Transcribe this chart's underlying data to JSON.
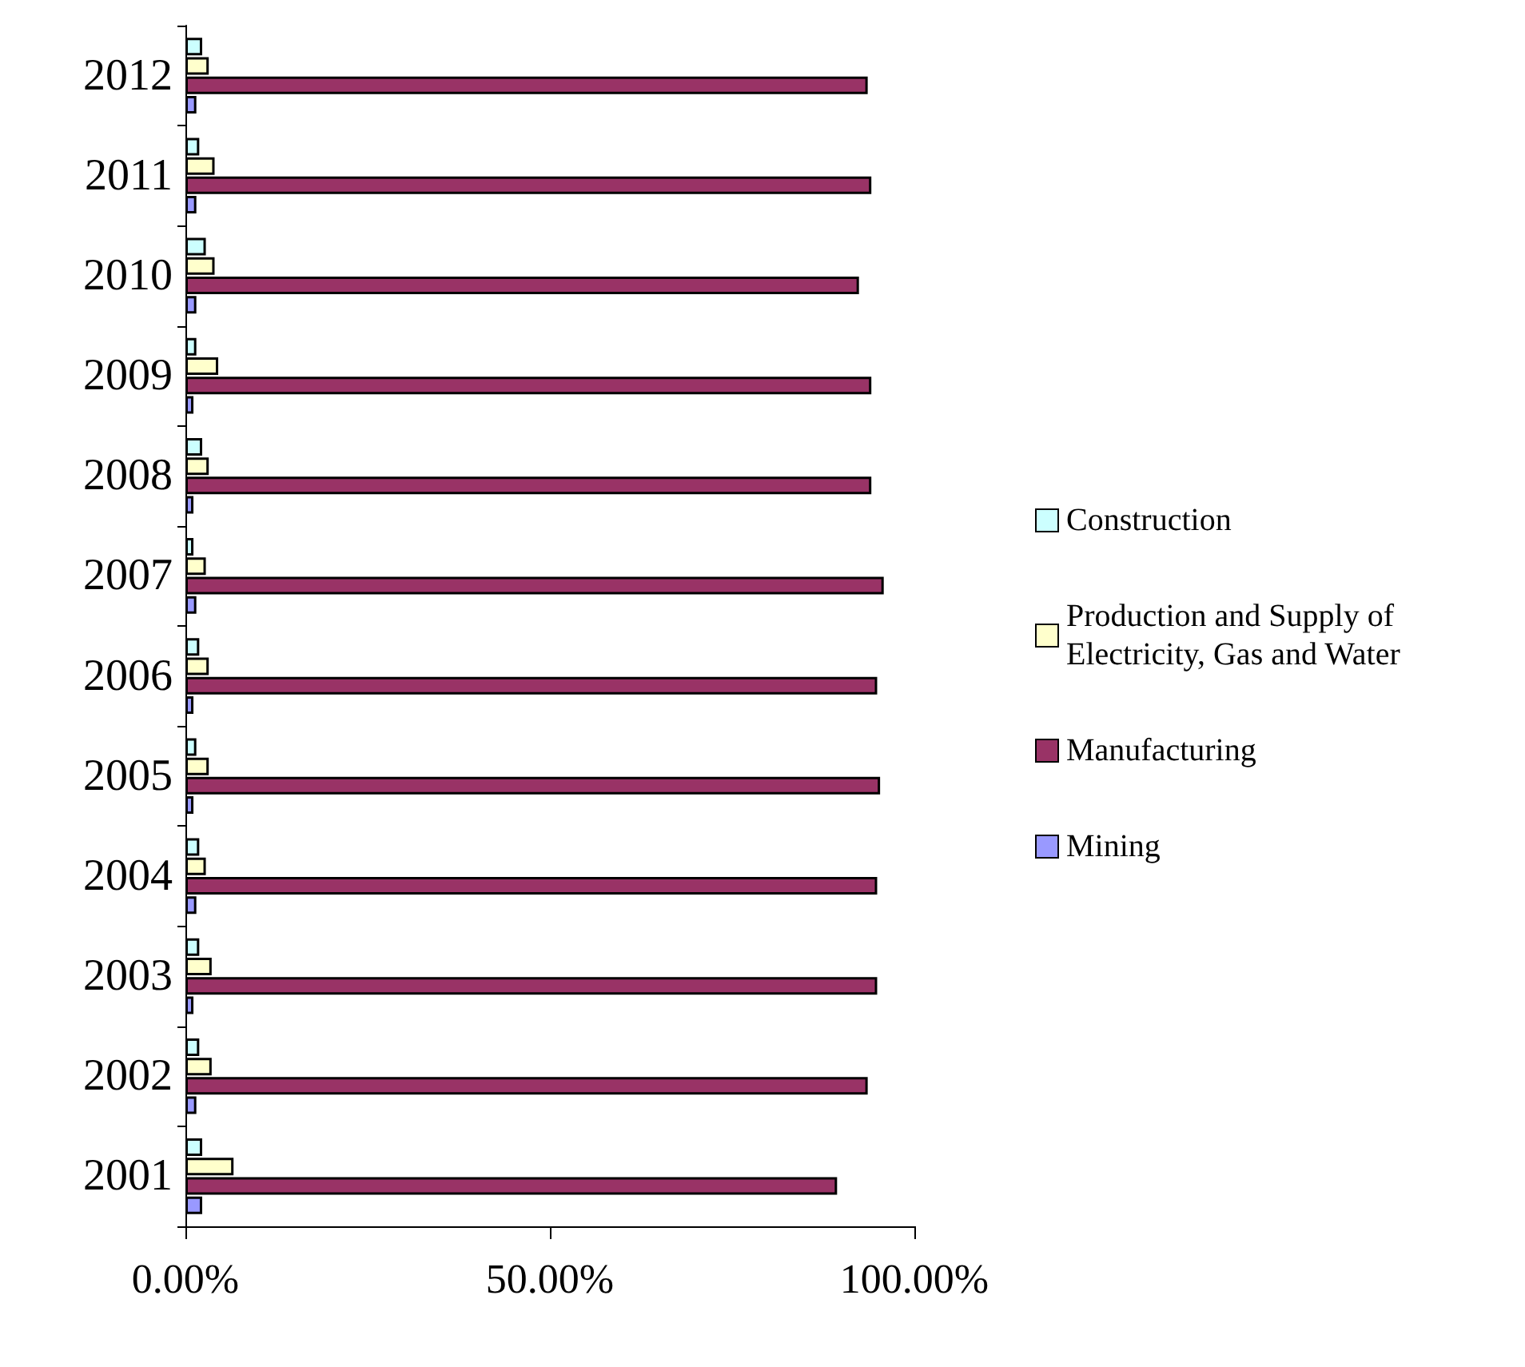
{
  "chart_data": {
    "type": "bar",
    "orientation": "horizontal",
    "categories": [
      "2012",
      "2011",
      "2010",
      "2009",
      "2008",
      "2007",
      "2006",
      "2005",
      "2004",
      "2003",
      "2002",
      "2001"
    ],
    "series": [
      {
        "name": "Construction",
        "color": "#ccffff",
        "values": [
          2.3,
          1.9,
          2.8,
          1.5,
          2.3,
          1.1,
          1.9,
          1.5,
          1.9,
          1.9,
          1.9,
          2.3
        ]
      },
      {
        "name": "Production and Supply of Electricity, Gas and Water",
        "color": "#ffffcc",
        "values": [
          3.2,
          4.0,
          4.0,
          4.5,
          3.2,
          2.8,
          3.2,
          3.2,
          2.8,
          3.6,
          3.6,
          6.6
        ]
      },
      {
        "name": "Manufacturing",
        "color": "#993366",
        "values": [
          93.6,
          94.1,
          92.4,
          94.1,
          94.1,
          95.8,
          94.9,
          95.3,
          94.9,
          94.9,
          93.6,
          89.4
        ]
      },
      {
        "name": "Mining",
        "color": "#9999ff",
        "values": [
          1.5,
          1.5,
          1.5,
          1.1,
          1.1,
          1.5,
          1.1,
          1.1,
          1.5,
          1.1,
          1.5,
          2.3
        ]
      }
    ],
    "xlim": [
      0,
      100
    ],
    "xticks": [
      {
        "value": 0,
        "label": "0.00%"
      },
      {
        "value": 50,
        "label": "50.00%"
      },
      {
        "value": 100,
        "label": "100.00%"
      }
    ],
    "grid": false,
    "legend": "right"
  }
}
